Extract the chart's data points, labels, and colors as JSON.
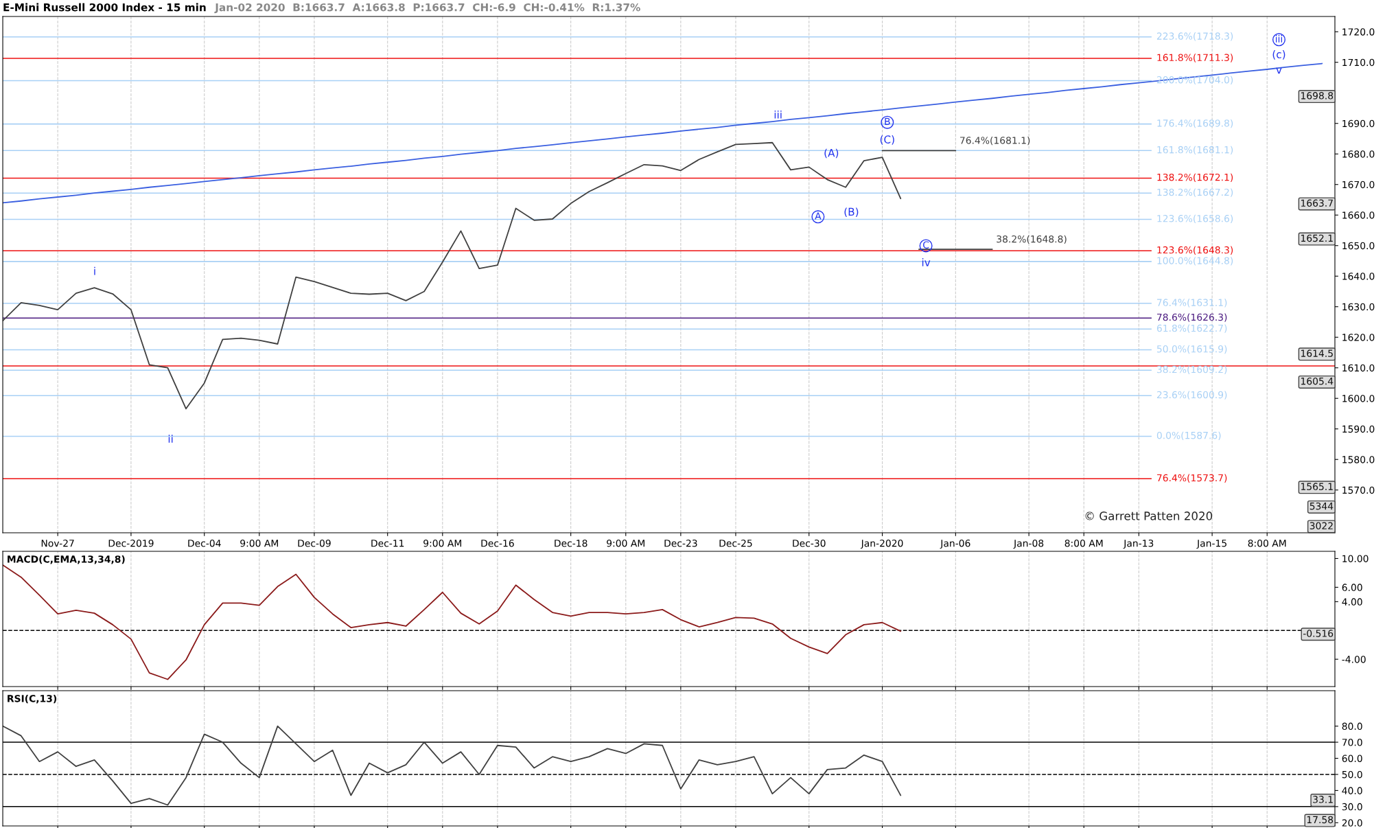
{
  "chart_data": [
    {
      "type": "line",
      "title": "E-Mini Russell 2000 Index - 15 min",
      "subtitle": "Jan-02 2020  B:1663.7  A:1663.8  P:1663.7  CH:-6.9  CH:-0.41%  R:1.37%",
      "categories": [
        null,
        null,
        null,
        "Nov-27",
        null,
        null,
        null,
        "Dec-2019",
        null,
        null,
        null,
        "Dec-04",
        null,
        null,
        "9:00 AM",
        null,
        null,
        "Dec-09",
        null,
        null,
        null,
        "Dec-11",
        null,
        null,
        "9:00 AM",
        null,
        null,
        "Dec-16",
        null,
        null,
        null,
        "Dec-18",
        null,
        null,
        "9:00 AM",
        null,
        null,
        "Dec-23",
        null,
        null,
        "Dec-25",
        null,
        null,
        null,
        "Dec-30",
        null,
        null,
        null,
        "Jan-2020",
        null,
        null,
        null,
        "Jan-06",
        null,
        null,
        null,
        "Jan-08",
        null,
        null,
        "8:00 AM",
        null,
        null,
        "Jan-13",
        null,
        null,
        null,
        "Jan-15",
        null,
        null,
        "8:00 AM",
        null,
        null,
        null
      ],
      "ylim": [
        1556,
        1725
      ],
      "yticks": [
        {
          "value": 1570,
          "label": "1570.0"
        },
        {
          "value": 1580,
          "label": "1580.0"
        },
        {
          "value": 1590,
          "label": "1590.0"
        },
        {
          "value": 1600,
          "label": "1600.0"
        },
        {
          "value": 1610,
          "label": "1610.0"
        },
        {
          "value": 1620,
          "label": "1620.0"
        },
        {
          "value": 1630,
          "label": "1630.0"
        },
        {
          "value": 1640,
          "label": "1640.0"
        },
        {
          "value": 1650,
          "label": "1650.0"
        },
        {
          "value": 1660,
          "label": "1660.0"
        },
        {
          "value": 1670,
          "label": "1670.0"
        },
        {
          "value": 1680,
          "label": "1680.0"
        },
        {
          "value": 1690,
          "label": "1690.0"
        },
        {
          "value": 1710,
          "label": "1710.0"
        },
        {
          "value": 1720,
          "label": "1720.0"
        }
      ],
      "grid": "x",
      "legend": false,
      "series": [
        {
          "color": "#404040",
          "values": [
            1625.4,
            1631.3,
            1630.4,
            1629.0,
            1634.4,
            1636.2,
            1634.2,
            1629.0,
            1611.0,
            1610.0,
            1596.6,
            1605.0,
            1619.3,
            1619.7,
            1619.0,
            1617.8,
            1639.7,
            1638.2,
            1636.3,
            1634.4,
            1634.1,
            1634.4,
            1632.0,
            1635.0,
            1644.6,
            1654.8,
            1642.5,
            1643.6,
            1662.2,
            1658.3,
            1658.7,
            1663.8,
            1667.7,
            1670.6,
            1673.6,
            1676.5,
            1676.1,
            1674.6,
            1678.2,
            1680.7,
            1683.1,
            1683.4,
            1683.7,
            1674.8,
            1675.7,
            1671.6,
            1669.1,
            1677.8,
            1678.9,
            1665.4,
            null,
            null,
            null,
            null,
            null,
            null,
            null,
            null,
            null,
            null,
            null,
            null,
            null,
            null,
            null,
            null,
            null,
            null,
            null,
            null,
            null,
            null,
            null
          ]
        },
        {
          "color": "#3a5fe0",
          "values": [
            1664.0,
            1664.6,
            1665.3,
            1665.9,
            1666.5,
            1667.2,
            1667.8,
            1668.4,
            1669.1,
            1669.7,
            1670.3,
            1671.0,
            1671.6,
            1672.2,
            1672.9,
            1673.5,
            1674.1,
            1674.8,
            1675.4,
            1676.0,
            1676.7,
            1677.3,
            1677.9,
            1678.6,
            1679.2,
            1679.9,
            1680.5,
            1681.1,
            1681.8,
            1682.4,
            1683.0,
            1683.7,
            1684.3,
            1684.9,
            1685.6,
            1686.2,
            1686.8,
            1687.5,
            1688.1,
            1688.7,
            1689.4,
            1690.0,
            1690.6,
            1691.3,
            1691.9,
            1692.5,
            1693.2,
            1693.8,
            1694.4,
            1695.1,
            1695.7,
            1696.3,
            1697.0,
            1697.6,
            1698.2,
            1698.9,
            1699.5,
            1700.1,
            1700.8,
            1701.4,
            1702.0,
            1702.7,
            1703.3,
            1703.9,
            1704.6,
            1705.2,
            1705.8,
            1706.5,
            1707.1,
            1707.7,
            1708.4,
            1709.0,
            1709.6
          ]
        },
        {
          "name": "76.4%(1681.1)",
          "color": "#404040",
          "values": [
            null,
            null,
            null,
            null,
            null,
            null,
            null,
            null,
            null,
            null,
            null,
            null,
            null,
            null,
            null,
            null,
            null,
            null,
            null,
            null,
            null,
            null,
            null,
            null,
            null,
            null,
            null,
            null,
            null,
            null,
            null,
            null,
            null,
            null,
            null,
            null,
            null,
            null,
            null,
            null,
            null,
            null,
            null,
            null,
            null,
            null,
            null,
            null,
            1681.1,
            1681.1,
            1681.1,
            1681.1,
            1681.1,
            null,
            null,
            null,
            null,
            null,
            null,
            null,
            null,
            null,
            null,
            null,
            null,
            null,
            null,
            null,
            null,
            null,
            null,
            null,
            null
          ]
        },
        {
          "name": "38.2%(1648.8)",
          "color": "#404040",
          "values": [
            null,
            null,
            null,
            null,
            null,
            null,
            null,
            null,
            null,
            null,
            null,
            null,
            null,
            null,
            null,
            null,
            null,
            null,
            null,
            null,
            null,
            null,
            null,
            null,
            null,
            null,
            null,
            null,
            null,
            null,
            null,
            null,
            null,
            null,
            null,
            null,
            null,
            null,
            null,
            null,
            null,
            null,
            null,
            null,
            null,
            null,
            null,
            null,
            null,
            null,
            1648.8,
            1648.8,
            1648.8,
            1648.8,
            1648.8,
            null,
            null,
            null,
            null,
            null,
            null,
            null,
            null,
            null,
            null,
            null,
            null,
            null,
            null,
            null,
            null,
            null,
            null
          ]
        }
      ],
      "ref_lines": [
        {
          "axis": "y",
          "value": 1718.3,
          "label": "223.6%(1718.3)",
          "color": "#a8d0f5"
        },
        {
          "axis": "y",
          "value": 1711.3,
          "label": "161.8%(1711.3)",
          "color": "#ee1111"
        },
        {
          "axis": "y",
          "value": 1704.0,
          "label": "200.0%(1704.0)",
          "color": "#a8d0f5"
        },
        {
          "axis": "y",
          "value": 1689.8,
          "label": "176.4%(1689.8)",
          "color": "#a8d0f5"
        },
        {
          "axis": "y",
          "value": 1681.1,
          "label": "161.8%(1681.1)",
          "color": "#a8d0f5"
        },
        {
          "axis": "y",
          "value": 1672.1,
          "label": "138.2%(1672.1)",
          "color": "#ee1111"
        },
        {
          "axis": "y",
          "value": 1667.2,
          "label": "138.2%(1667.2)",
          "color": "#a8d0f5"
        },
        {
          "axis": "y",
          "value": 1658.6,
          "label": "123.6%(1658.6)",
          "color": "#a8d0f5"
        },
        {
          "axis": "y",
          "value": 1648.3,
          "label": "123.6%(1648.3)",
          "color": "#ee1111"
        },
        {
          "axis": "y",
          "value": 1644.8,
          "label": "100.0%(1644.8)",
          "color": "#a8d0f5"
        },
        {
          "axis": "y",
          "value": 1631.1,
          "label": "76.4%(1631.1)",
          "color": "#a8d0f5"
        },
        {
          "axis": "y",
          "value": 1626.3,
          "label": "78.6%(1626.3)",
          "color": "#4b1a80"
        },
        {
          "axis": "y",
          "value": 1622.7,
          "label": "61.8%(1622.7)",
          "color": "#a8d0f5"
        },
        {
          "axis": "y",
          "value": 1615.9,
          "label": "50.0%(1615.9)",
          "color": "#a8d0f5"
        },
        {
          "axis": "y",
          "value": 1610.6,
          "label": null,
          "color": "#ee1111"
        },
        {
          "axis": "y",
          "value": 1609.2,
          "label": "38.2%(1609.2)",
          "color": "#a8d0f5"
        },
        {
          "axis": "y",
          "value": 1600.9,
          "label": "23.6%(1600.9)",
          "color": "#a8d0f5"
        },
        {
          "axis": "y",
          "value": 1587.6,
          "label": "0.0%(1587.6)",
          "color": "#a8d0f5"
        },
        {
          "axis": "y",
          "value": 1573.7,
          "label": "76.4%(1573.7)",
          "color": "#ee1111"
        }
      ],
      "annotations": [
        "i",
        "ii",
        "iii",
        "A",
        "(A)",
        "(B)",
        "B",
        "(C)",
        "C",
        "iv",
        "iii",
        "(c)",
        "v",
        "1698.8",
        "1663.7",
        "1652.1",
        "1614.5",
        "1605.4",
        "1565.1",
        "5344",
        "3022",
        "© Garrett Patten 2020"
      ]
    },
    {
      "type": "line",
      "title": "MACD(C,EMA,13,34,8)",
      "categories": [
        null,
        null,
        null,
        null,
        null,
        null,
        null,
        null,
        null,
        null,
        null,
        null,
        null,
        null,
        null,
        null,
        null,
        null,
        null,
        null,
        null,
        null,
        null,
        null,
        null,
        null,
        null,
        null,
        null,
        null,
        null,
        null,
        null,
        null,
        null,
        null,
        null,
        null,
        null,
        null,
        null,
        null,
        null,
        null,
        null,
        null,
        null,
        null,
        null,
        null,
        null,
        null,
        null,
        null,
        null,
        null,
        null,
        null,
        null,
        null,
        null,
        null,
        null,
        null,
        null,
        null,
        null,
        null,
        null,
        null,
        null,
        null,
        null
      ],
      "ylim": [
        -7.8,
        11
      ],
      "yticks": [
        {
          "value": 10,
          "label": "10.00"
        },
        {
          "value": 6,
          "label": "6.00"
        },
        {
          "value": 4,
          "label": "4.00"
        },
        {
          "value": -4,
          "label": "-4.00"
        }
      ],
      "tick_labels": "y",
      "grid": "x",
      "legend": false,
      "series": [
        {
          "color": "#8b1a1a",
          "values": [
            9.1,
            7.4,
            4.9,
            2.3,
            2.8,
            2.4,
            0.8,
            -1.2,
            -5.9,
            -6.8,
            -4.1,
            0.8,
            3.8,
            3.8,
            3.5,
            6.1,
            7.8,
            4.6,
            2.3,
            0.4,
            0.8,
            1.1,
            0.6,
            2.9,
            5.3,
            2.4,
            0.9,
            2.7,
            6.3,
            4.3,
            2.5,
            2.0,
            2.5,
            2.5,
            2.3,
            2.5,
            2.9,
            1.5,
            0.5,
            1.1,
            1.8,
            1.7,
            0.9,
            -1.1,
            -2.3,
            -3.2,
            -0.6,
            0.8,
            1.1,
            -0.1,
            null,
            null,
            null,
            null,
            null,
            null,
            null,
            null,
            null,
            null,
            null,
            null,
            null,
            null,
            null,
            null,
            null,
            null,
            null,
            null,
            null,
            null,
            null
          ]
        }
      ],
      "ref_lines": [
        {
          "axis": "y",
          "value": 0,
          "label": null,
          "color": "#000000",
          "line_style": "dashed"
        }
      ],
      "annotations": [
        "-0.516"
      ]
    },
    {
      "type": "line",
      "title": "RSI(C,13)",
      "categories": [
        null,
        null,
        null,
        null,
        null,
        null,
        null,
        null,
        null,
        null,
        null,
        null,
        null,
        null,
        null,
        null,
        null,
        null,
        null,
        null,
        null,
        null,
        null,
        null,
        null,
        null,
        null,
        null,
        null,
        null,
        null,
        null,
        null,
        null,
        null,
        null,
        null,
        null,
        null,
        null,
        null,
        null,
        null,
        null,
        null,
        null,
        null,
        null,
        null,
        null,
        null,
        null,
        null,
        null,
        null,
        null,
        null,
        null,
        null,
        null,
        null,
        null,
        null,
        null,
        null,
        null,
        null,
        null,
        null,
        null,
        null,
        null,
        null
      ],
      "ylim": [
        18,
        102
      ],
      "yticks": [
        {
          "value": 20,
          "label": "20.0"
        },
        {
          "value": 30,
          "label": "30.0"
        },
        {
          "value": 40,
          "label": "40.0"
        },
        {
          "value": 50,
          "label": "50.0"
        },
        {
          "value": 60,
          "label": "60.0"
        },
        {
          "value": 70,
          "label": "70.0"
        },
        {
          "value": 80,
          "label": "80.0"
        }
      ],
      "tick_labels": "y",
      "grid": "x",
      "legend": false,
      "series": [
        {
          "color": "#404040",
          "values": [
            80,
            74,
            58,
            64,
            55,
            59,
            46,
            32,
            35,
            31,
            48,
            75,
            70,
            57,
            48,
            80,
            69,
            58,
            65,
            37,
            57,
            51,
            56,
            70,
            57,
            64,
            50,
            68,
            67,
            54,
            61,
            58,
            61,
            66,
            63,
            69,
            68,
            41,
            59,
            56,
            58,
            61,
            38,
            48,
            38,
            53,
            54,
            62,
            58,
            37,
            null,
            null,
            null,
            null,
            null,
            null,
            null,
            null,
            null,
            null,
            null,
            null,
            null,
            null,
            null,
            null,
            null,
            null,
            null,
            null,
            null,
            null,
            null
          ]
        }
      ],
      "ref_lines": [
        {
          "axis": "y",
          "value": 70,
          "label": null,
          "color": "#000000",
          "line_style": "solid"
        },
        {
          "axis": "y",
          "value": 50,
          "label": null,
          "color": "#000000",
          "line_style": "dashed"
        },
        {
          "axis": "y",
          "value": 30,
          "label": null,
          "color": "#000000",
          "line_style": "solid"
        }
      ],
      "annotations": [
        "33.1",
        "17.58"
      ]
    }
  ]
}
